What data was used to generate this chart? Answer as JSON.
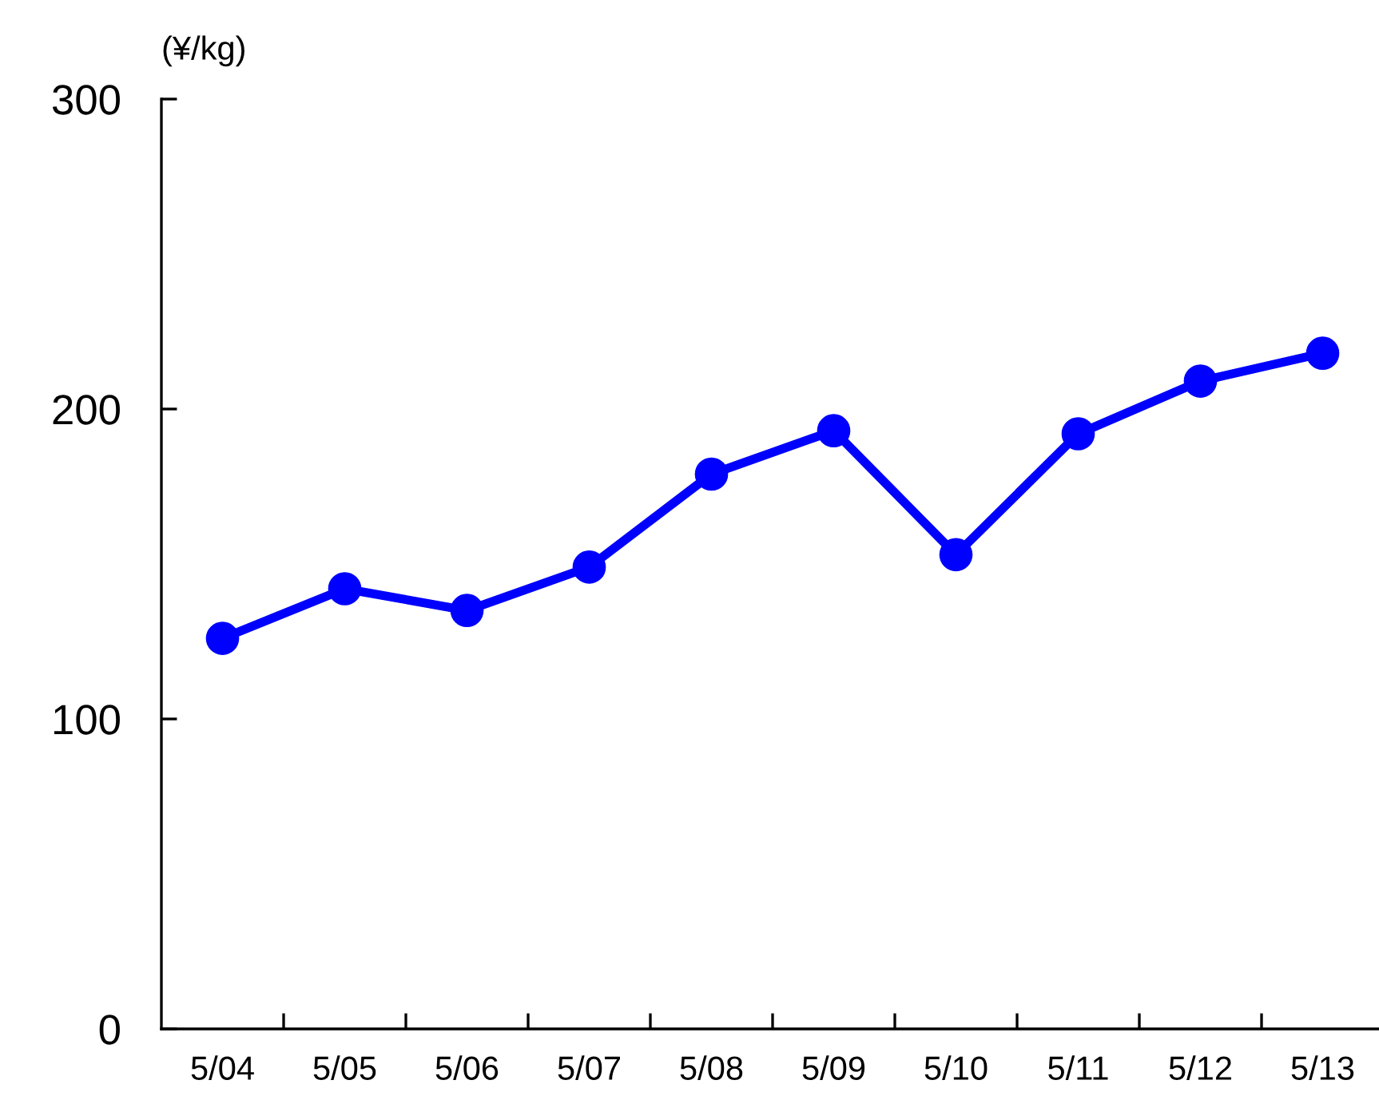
{
  "chart_data": {
    "type": "line",
    "ylabel": "(¥/kg)",
    "categories": [
      "5/04",
      "5/05",
      "5/06",
      "5/07",
      "5/08",
      "5/09",
      "5/10",
      "5/11",
      "5/12",
      "5/13"
    ],
    "series": [
      {
        "color": "#0000ff",
        "values": [
          126,
          142,
          135,
          149,
          179,
          193,
          153,
          192,
          209,
          218
        ]
      }
    ],
    "ylim": [
      0,
      300
    ],
    "yticks": [
      0,
      100,
      200,
      300
    ],
    "marker": "circle",
    "line_style": "solid",
    "grid": false,
    "legend": false
  }
}
